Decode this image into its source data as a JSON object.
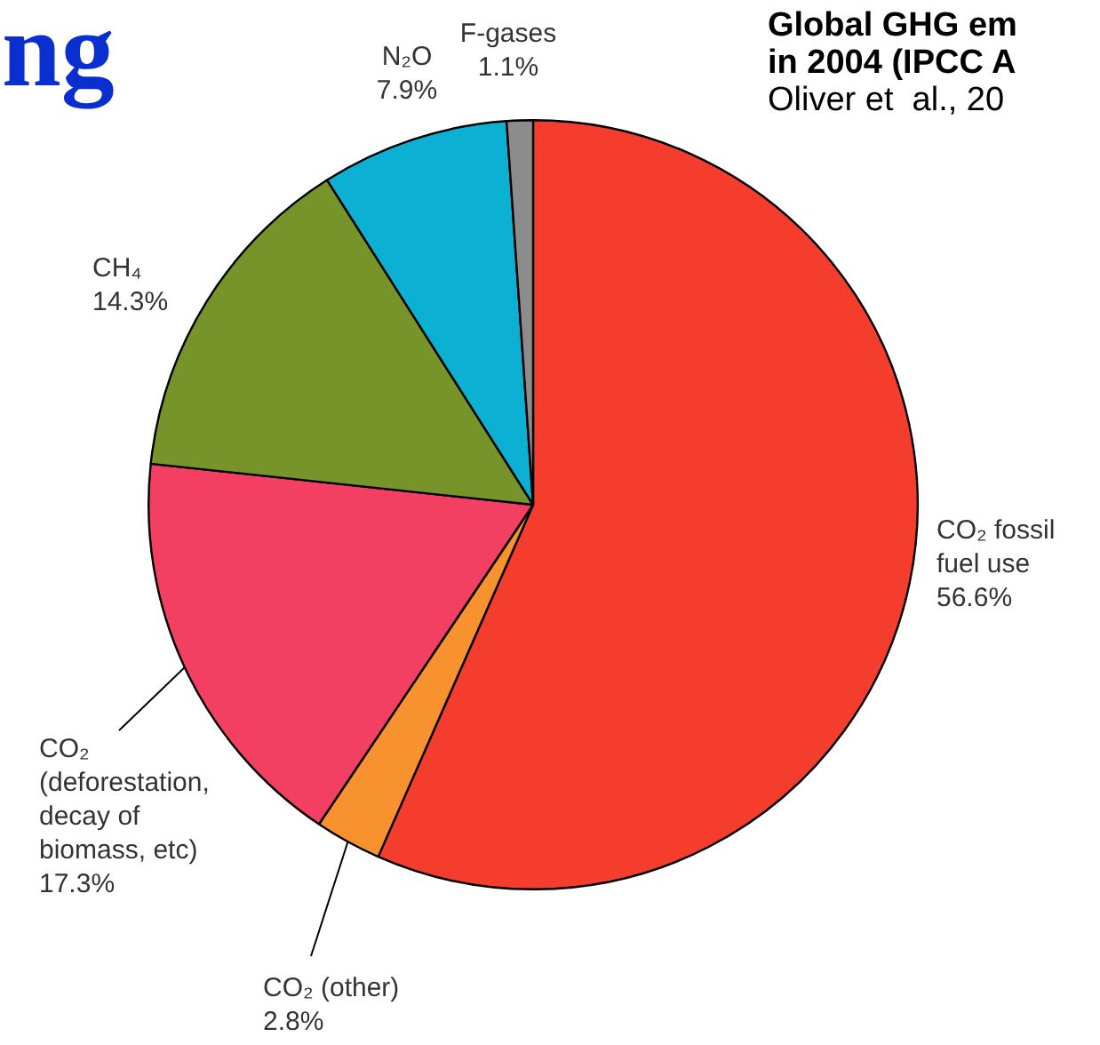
{
  "chart_data": {
    "type": "pie",
    "title": "ng",
    "annotations": [
      "Global GHG em",
      "in 2004 (IPCC A",
      "Oliver et  al., 20"
    ],
    "categories": [
      "CO₂ fossil fuel use",
      "CO₂ (other)",
      "CO₂ (deforestation, decay of biomass, etc)",
      "CH₄",
      "N₂O",
      "F-gases"
    ],
    "values": [
      56.6,
      2.8,
      17.3,
      14.3,
      7.9,
      1.1
    ],
    "colors": [
      "#f53d2e",
      "#f7922f",
      "#f23f62",
      "#76942a",
      "#0bb0d2",
      "#8c8c8c"
    ],
    "value_labels": [
      "56.6%",
      "2.8%",
      "17.3%",
      "14.3%",
      "7.9%",
      "1.1%"
    ],
    "legend": false
  }
}
